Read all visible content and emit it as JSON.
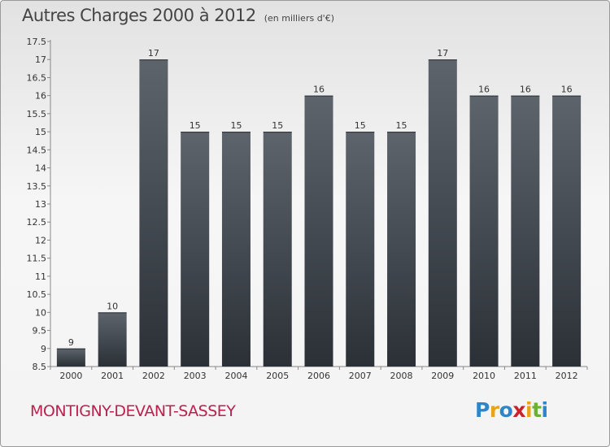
{
  "header": {
    "title": "Autres Charges 2000 à 2012",
    "unit": "(en milliers d'€)"
  },
  "footer": {
    "place": "MONTIGNY-DEVANT-SASSEY",
    "logo_letters": [
      {
        "ch": "P",
        "color": "#2e86c8"
      },
      {
        "ch": "r",
        "color": "#e8a317"
      },
      {
        "ch": "o",
        "color": "#2e86c8"
      },
      {
        "ch": "x",
        "color": "#c8232c"
      },
      {
        "ch": "i",
        "color": "#e8a317"
      },
      {
        "ch": "t",
        "color": "#6bb233"
      },
      {
        "ch": "i",
        "color": "#2e86c8"
      }
    ]
  },
  "colors": {
    "bar_top": "#5d646b",
    "bar_bottom": "#2b3037",
    "title": "#444444",
    "place": "#b8224e"
  },
  "chart_data": {
    "type": "bar",
    "title": "Autres Charges 2000 à 2012",
    "subtitle": "(en milliers d'€)",
    "categories": [
      "2000",
      "2001",
      "2002",
      "2003",
      "2004",
      "2005",
      "2006",
      "2007",
      "2008",
      "2009",
      "2010",
      "2011",
      "2012"
    ],
    "values": [
      9,
      10,
      17,
      15,
      15,
      15,
      16,
      15,
      15,
      17,
      16,
      16,
      16
    ],
    "value_labels": [
      "9",
      "10",
      "17",
      "15",
      "15",
      "15",
      "16",
      "15",
      "15",
      "17",
      "16",
      "16",
      "16"
    ],
    "ylim": [
      8.5,
      17.5
    ],
    "yticks": [
      8.5,
      9,
      9.5,
      10,
      10.5,
      11,
      11.5,
      12,
      12.5,
      13,
      13.5,
      14,
      14.5,
      15,
      15.5,
      16,
      16.5,
      17,
      17.5
    ],
    "ytick_labels": [
      "8.5",
      "9",
      "9.5",
      "10",
      "10.5",
      "11",
      "11.5",
      "12",
      "12.5",
      "13",
      "13.5",
      "14",
      "14.5",
      "15",
      "15.5",
      "16",
      "16.5",
      "17",
      "17.5"
    ],
    "grid": false,
    "legend": "none"
  }
}
